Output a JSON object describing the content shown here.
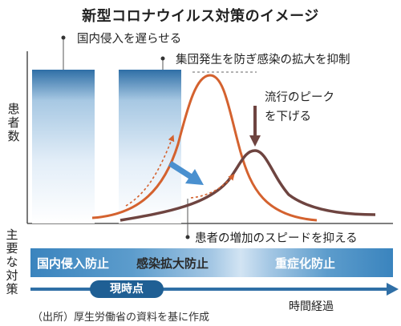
{
  "title": "新型コロナウイルス対策のイメージ",
  "annotations": {
    "border_entry": "国内侵入を遅らせる",
    "cluster": "集団発生を防ぎ感染の拡大を抑制",
    "peak": [
      "流行のピーク",
      "を下げる"
    ],
    "speed": "患者の増加のスピードを抑える"
  },
  "y_axis_label": [
    "患",
    "者",
    "数"
  ],
  "timeline": {
    "label": [
      "主",
      "要",
      "な",
      "対",
      "策"
    ],
    "phases": [
      "国内侵入防止",
      "感染拡大防止",
      "重症化防止"
    ],
    "now": "現時点",
    "time_label": "時間経過"
  },
  "source": "（出所）厚生労働省の資料を基に作成",
  "colors": {
    "uncontrolled_curve": "#d4622f",
    "controlled_curve": "#6e4440",
    "bar_top": "#2f6fa6",
    "band": "#3a84be",
    "arrow_blue": "#4a90cf",
    "now_badge": "#1f5f94"
  }
}
